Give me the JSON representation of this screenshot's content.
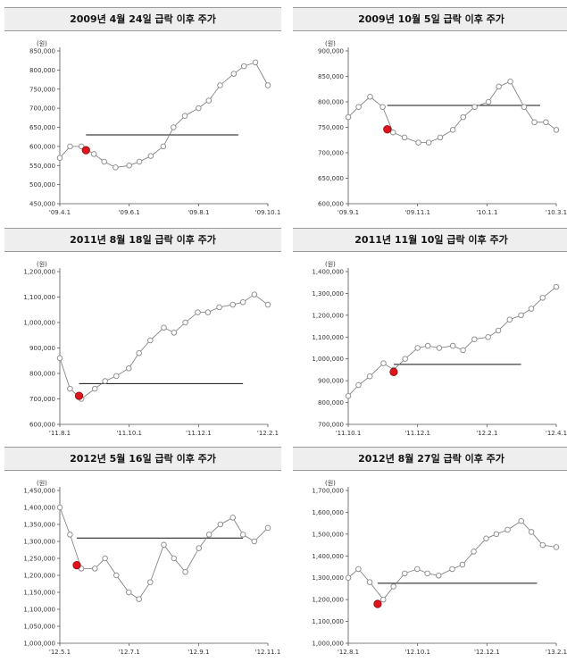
{
  "chart_data": [
    {
      "type": "line",
      "title": "2009년 4월 24일 급락 이후 주가",
      "unit": "(원)",
      "yticks": [
        "850,000",
        "800,000",
        "750,000",
        "700,000",
        "650,000",
        "600,000",
        "550,000",
        "500,000",
        "450,000"
      ],
      "ylim": [
        450000,
        850000
      ],
      "xticks": [
        "'09.4.1",
        "'09.6.1",
        "'09.8.1",
        "'09.10.1"
      ],
      "x_start": "2009-04-01",
      "x_end": "2009-10-01",
      "event": {
        "date": "2009-04-24",
        "value": 590000
      },
      "reference_line": {
        "value": 630000,
        "from": "2009-04-24",
        "to": "2009-09-05"
      },
      "x": [
        "2009-04-01",
        "2009-04-10",
        "2009-04-20",
        "2009-05-01",
        "2009-05-10",
        "2009-05-20",
        "2009-06-01",
        "2009-06-10",
        "2009-06-20",
        "2009-07-01",
        "2009-07-10",
        "2009-07-20",
        "2009-08-01",
        "2009-08-10",
        "2009-08-20",
        "2009-09-01",
        "2009-09-10",
        "2009-09-20",
        "2009-10-01"
      ],
      "values": [
        570000,
        600000,
        600000,
        580000,
        560000,
        545000,
        550000,
        560000,
        575000,
        600000,
        650000,
        680000,
        700000,
        720000,
        760000,
        790000,
        810000,
        820000,
        760000
      ]
    },
    {
      "type": "line",
      "title": "2009년 10월 5일 급락 이후 주가",
      "unit": "(원)",
      "yticks": [
        "900,000",
        "850,000",
        "800,000",
        "750,000",
        "700,000",
        "650,000",
        "600,000"
      ],
      "ylim": [
        600000,
        900000
      ],
      "xticks": [
        "'09.9.1",
        "'09.11.1",
        "'10.1.1",
        "'10.3.1"
      ],
      "x_start": "2009-09-01",
      "x_end": "2010-03-01",
      "event": {
        "date": "2009-10-05",
        "value": 746000
      },
      "reference_line": {
        "value": 793000,
        "from": "2009-10-05",
        "to": "2010-02-15"
      },
      "x": [
        "2009-09-01",
        "2009-09-10",
        "2009-09-20",
        "2009-10-01",
        "2009-10-10",
        "2009-10-20",
        "2009-11-01",
        "2009-11-10",
        "2009-11-20",
        "2009-12-01",
        "2009-12-10",
        "2009-12-20",
        "2010-01-01",
        "2010-01-10",
        "2010-01-20",
        "2010-02-01",
        "2010-02-10",
        "2010-02-20",
        "2010-03-01"
      ],
      "values": [
        770000,
        790000,
        810000,
        790000,
        740000,
        730000,
        720000,
        720000,
        730000,
        745000,
        770000,
        790000,
        800000,
        830000,
        840000,
        790000,
        760000,
        760000,
        745000
      ]
    },
    {
      "type": "line",
      "title": "2011년 8월 18일 급락 이후 주가",
      "unit": "(원)",
      "yticks": [
        "1,200,000",
        "1,100,000",
        "1,000,000",
        "900,000",
        "800,000",
        "700,000",
        "600,000"
      ],
      "ylim": [
        600000,
        1200000
      ],
      "xticks": [
        "'11.8.1",
        "'11.10.1",
        "'11.12.1",
        "'12.2.1"
      ],
      "x_start": "2011-08-01",
      "x_end": "2012-02-01",
      "event": {
        "date": "2011-08-18",
        "value": 712000
      },
      "reference_line": {
        "value": 760000,
        "from": "2011-08-18",
        "to": "2012-01-10"
      },
      "x": [
        "2011-08-01",
        "2011-08-10",
        "2011-08-20",
        "2011-09-01",
        "2011-09-10",
        "2011-09-20",
        "2011-10-01",
        "2011-10-10",
        "2011-10-20",
        "2011-11-01",
        "2011-11-10",
        "2011-11-20",
        "2011-12-01",
        "2011-12-10",
        "2011-12-20",
        "2012-01-01",
        "2012-01-10",
        "2012-01-20",
        "2012-02-01"
      ],
      "values": [
        860000,
        740000,
        700000,
        740000,
        770000,
        790000,
        820000,
        880000,
        930000,
        980000,
        960000,
        1000000,
        1040000,
        1040000,
        1060000,
        1070000,
        1080000,
        1110000,
        1070000
      ]
    },
    {
      "type": "line",
      "title": "2011년 11월 10일 급락 이후 주가",
      "unit": "(원)",
      "yticks": [
        "1,400,000",
        "1,300,000",
        "1,200,000",
        "1,100,000",
        "1,000,000",
        "900,000",
        "800,000",
        "700,000"
      ],
      "ylim": [
        700000,
        1400000
      ],
      "xticks": [
        "'11.10.1",
        "'11.12.1",
        "'12.2.1",
        "'12.4.1"
      ],
      "x_start": "2011-10-01",
      "x_end": "2012-04-01",
      "event": {
        "date": "2011-11-10",
        "value": 940000
      },
      "reference_line": {
        "value": 975000,
        "from": "2011-11-10",
        "to": "2012-03-01"
      },
      "x": [
        "2011-10-01",
        "2011-10-10",
        "2011-10-20",
        "2011-11-01",
        "2011-11-10",
        "2011-11-20",
        "2011-12-01",
        "2011-12-10",
        "2011-12-20",
        "2012-01-01",
        "2012-01-10",
        "2012-01-20",
        "2012-02-01",
        "2012-02-10",
        "2012-02-20",
        "2012-03-01",
        "2012-03-10",
        "2012-03-20",
        "2012-04-01"
      ],
      "values": [
        830000,
        880000,
        920000,
        980000,
        950000,
        1000000,
        1050000,
        1060000,
        1050000,
        1060000,
        1040000,
        1090000,
        1100000,
        1130000,
        1180000,
        1200000,
        1230000,
        1280000,
        1330000
      ]
    },
    {
      "type": "line",
      "title": "2012년 5월 16일 급락 이후 주가",
      "unit": "(원)",
      "yticks": [
        "1,450,000",
        "1,400,000",
        "1,350,000",
        "1,300,000",
        "1,250,000",
        "1,200,000",
        "1,150,000",
        "1,100,000",
        "1,050,000",
        "1,000,000"
      ],
      "ylim": [
        1000000,
        1450000
      ],
      "xticks": [
        "'12.5.1",
        "'12.7.1",
        "'12.9.1",
        "'12.11.1"
      ],
      "x_start": "2012-05-01",
      "x_end": "2012-11-01",
      "event": {
        "date": "2012-05-16",
        "value": 1230000
      },
      "reference_line": {
        "value": 1310000,
        "from": "2012-05-16",
        "to": "2012-10-10"
      },
      "x": [
        "2012-05-01",
        "2012-05-10",
        "2012-05-20",
        "2012-06-01",
        "2012-06-10",
        "2012-06-20",
        "2012-07-01",
        "2012-07-10",
        "2012-07-20",
        "2012-08-01",
        "2012-08-10",
        "2012-08-20",
        "2012-09-01",
        "2012-09-10",
        "2012-09-20",
        "2012-10-01",
        "2012-10-10",
        "2012-10-20",
        "2012-11-01"
      ],
      "values": [
        1400000,
        1320000,
        1220000,
        1220000,
        1250000,
        1200000,
        1150000,
        1130000,
        1180000,
        1290000,
        1250000,
        1210000,
        1280000,
        1320000,
        1350000,
        1370000,
        1320000,
        1300000,
        1340000
      ]
    },
    {
      "type": "line",
      "title": "2012년 8월 27일 급락 이후 주가",
      "unit": "(원)",
      "yticks": [
        "1,700,000",
        "1,600,000",
        "1,500,000",
        "1,400,000",
        "1,300,000",
        "1,200,000",
        "1,100,000",
        "1,000,000"
      ],
      "ylim": [
        1000000,
        1700000
      ],
      "xticks": [
        "'12.8.1",
        "'12.10.1",
        "'12.12.1",
        "'13.2.1"
      ],
      "x_start": "2012-08-01",
      "x_end": "2013-02-01",
      "event": {
        "date": "2012-08-27",
        "value": 1180000
      },
      "reference_line": {
        "value": 1275000,
        "from": "2012-08-27",
        "to": "2013-01-15"
      },
      "x": [
        "2012-08-01",
        "2012-08-10",
        "2012-08-20",
        "2012-09-01",
        "2012-09-10",
        "2012-09-20",
        "2012-10-01",
        "2012-10-10",
        "2012-10-20",
        "2012-11-01",
        "2012-11-10",
        "2012-11-20",
        "2012-12-01",
        "2012-12-10",
        "2012-12-20",
        "2013-01-01",
        "2013-01-10",
        "2013-01-20",
        "2013-02-01"
      ],
      "values": [
        1300000,
        1340000,
        1280000,
        1200000,
        1260000,
        1320000,
        1340000,
        1320000,
        1310000,
        1340000,
        1360000,
        1420000,
        1480000,
        1500000,
        1520000,
        1560000,
        1510000,
        1450000,
        1440000
      ]
    }
  ]
}
